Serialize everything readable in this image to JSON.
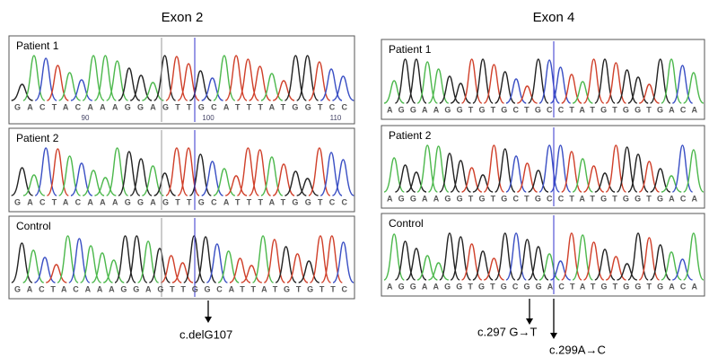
{
  "panels": [
    {
      "title": "Exon 2",
      "tracks": [
        {
          "label": "Patient 1",
          "sequence": "GACTACAAAGGAGTTGCATTTATGGTCC",
          "positions": [
            "90",
            "100",
            "110"
          ]
        },
        {
          "label": "Patient 2",
          "sequence": "GACTACAAAGGAGTTGCATTTATGGTCC"
        },
        {
          "label": "Control",
          "sequence": "GACTACAAAGGAGTTGGCATTATGTGTTC"
        }
      ],
      "annotations": [
        "c.delG107"
      ]
    },
    {
      "title": "Exon 4",
      "tracks": [
        {
          "label": "Patient 1",
          "sequence": "AGGAAGGTGTGCTGCCTATGTGGTGACA"
        },
        {
          "label": "Patient 2",
          "sequence": "AGGAAGGTGTGCTGCCTATGTGGTGACA"
        },
        {
          "label": "Control",
          "sequence": "AGGAAGGTGTGCGGACTATGTGGTGACA"
        }
      ],
      "annotations": [
        "c.297 G→T",
        "c.299A→C"
      ]
    }
  ]
}
